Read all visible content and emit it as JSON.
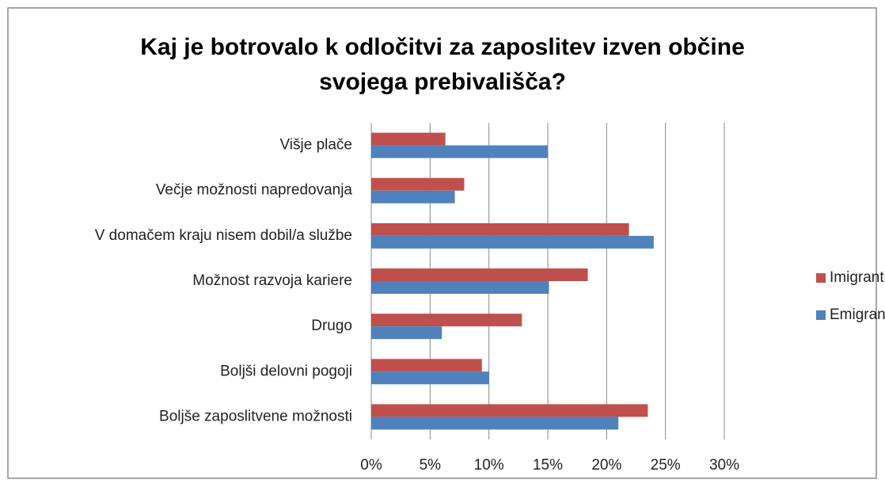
{
  "chart_data": {
    "type": "bar",
    "orientation": "horizontal",
    "title": "Kaj je botrovalo k odločitvi za zaposlitev izven občine svojega prebivališča?",
    "categories": [
      "Višje plače",
      "Večje možnosti napredovanja",
      "V domačem kraju nisem dobil/a službe",
      "Možnost razvoja kariere",
      "Drugo",
      "Boljši delovni pogoji",
      "Boljše zaposlitvene možnosti"
    ],
    "series": [
      {
        "name": "Imigranti",
        "color": "#c0504d",
        "values": [
          6.3,
          7.9,
          21.9,
          18.4,
          12.8,
          9.4,
          23.5
        ]
      },
      {
        "name": "Emigranti",
        "color": "#4f81bd",
        "values": [
          15.0,
          7.1,
          24.0,
          15.1,
          6.0,
          10.0,
          21.0
        ]
      }
    ],
    "xlim": [
      0,
      30
    ],
    "xticks": [
      {
        "value": 0,
        "label": "0%"
      },
      {
        "value": 5,
        "label": "5%"
      },
      {
        "value": 10,
        "label": "10%"
      },
      {
        "value": 15,
        "label": "15%"
      },
      {
        "value": 20,
        "label": "20%"
      },
      {
        "value": 25,
        "label": "25%"
      },
      {
        "value": 30,
        "label": "30%"
      }
    ],
    "grid": true,
    "legend": "right"
  }
}
